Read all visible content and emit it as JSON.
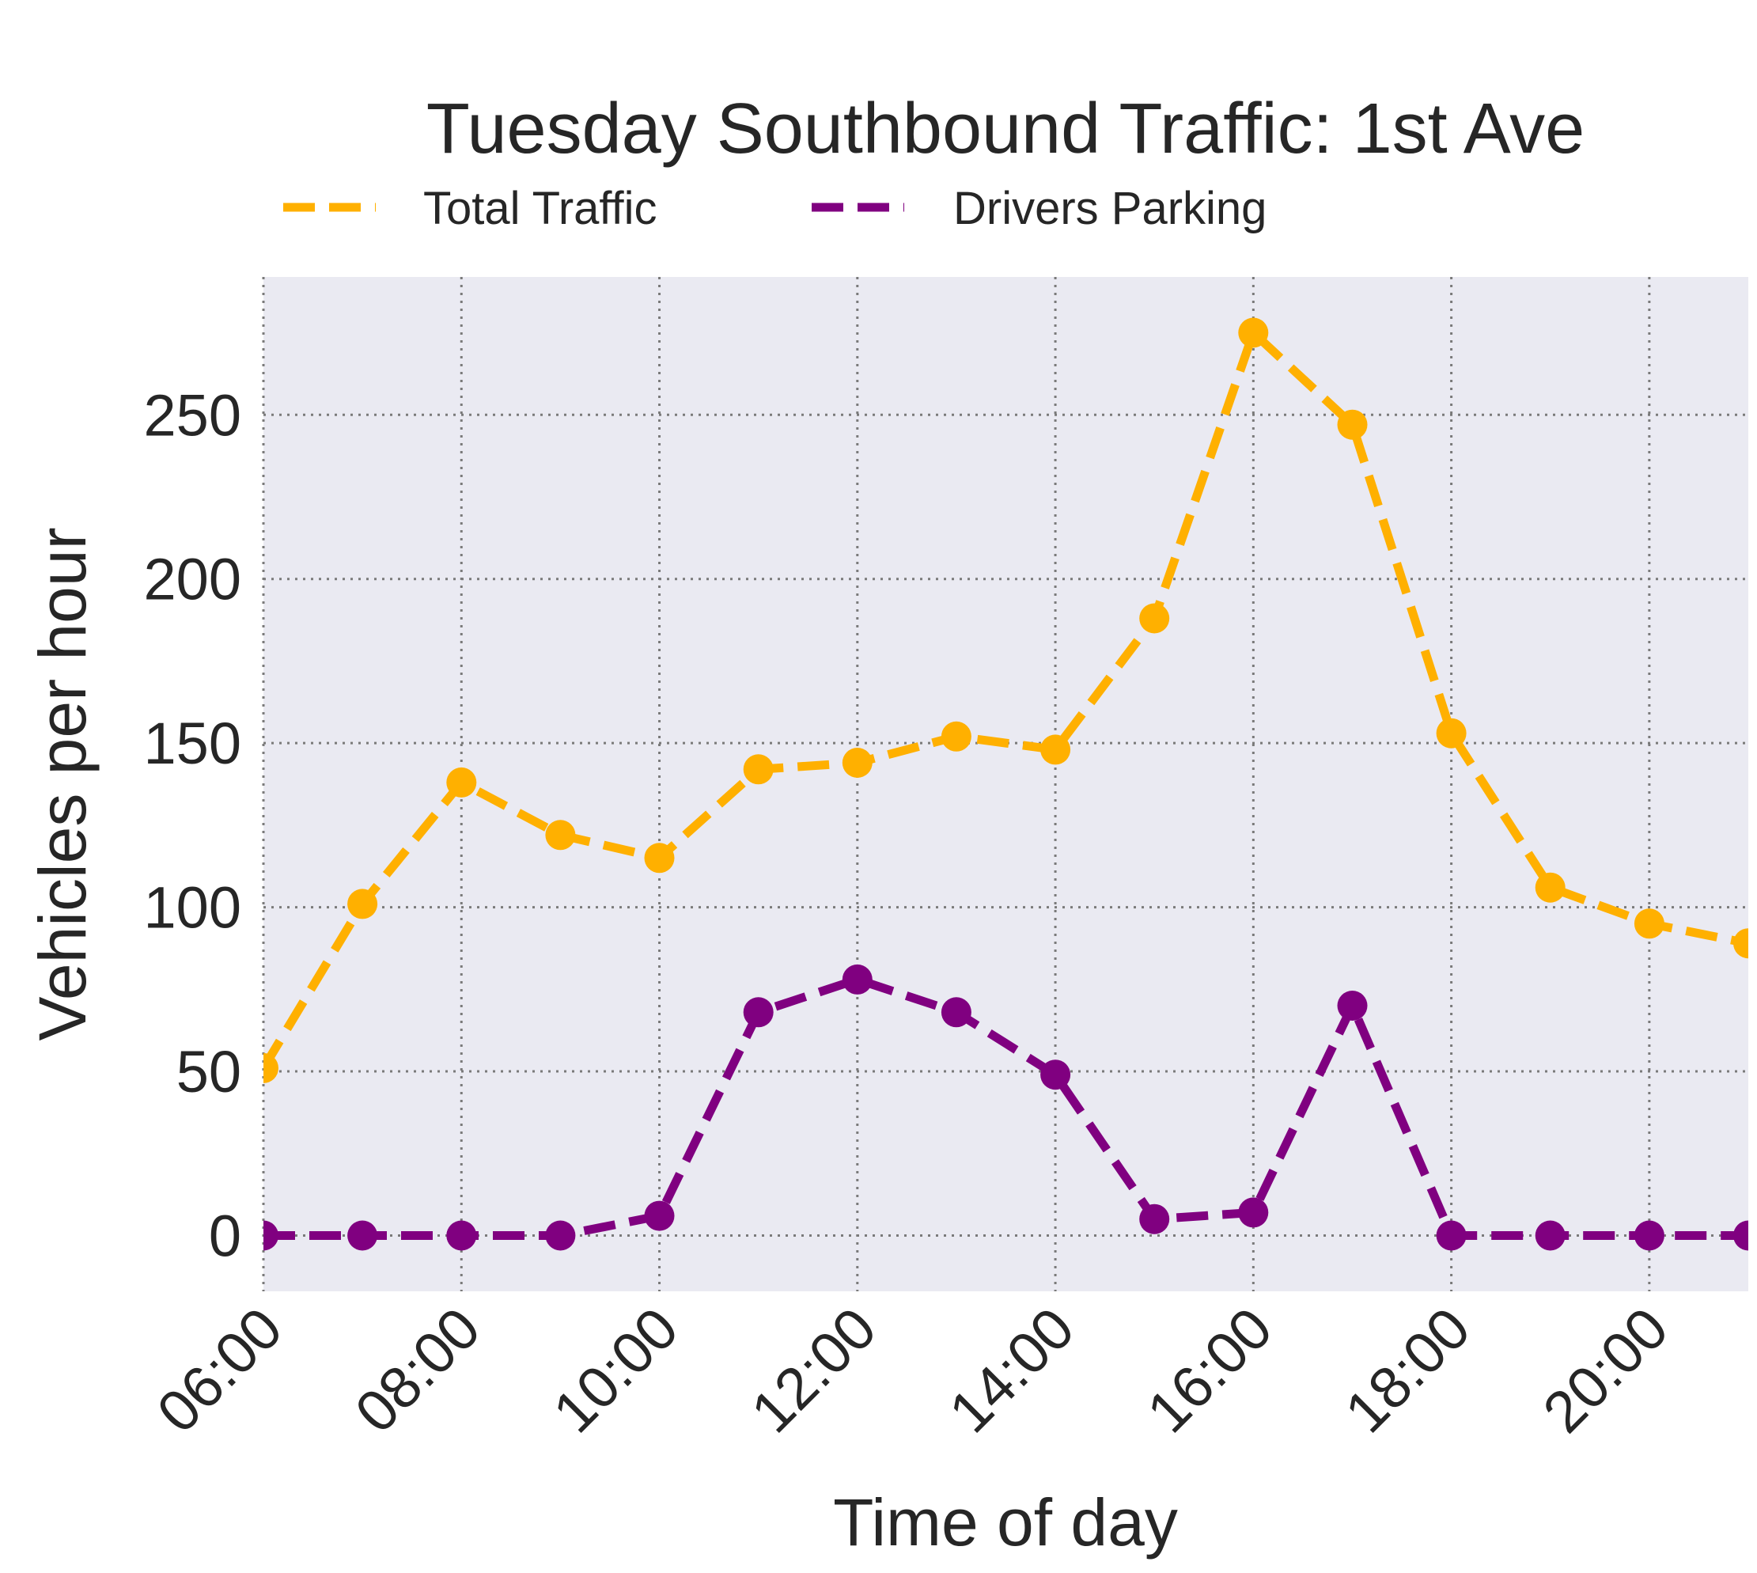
{
  "chart_data": {
    "type": "line",
    "title": "Tuesday Southbound Traffic: 1st Ave",
    "xlabel": "Time of day",
    "ylabel": "Vehicles per hour",
    "x": [
      "06:00",
      "07:00",
      "08:00",
      "09:00",
      "10:00",
      "11:00",
      "12:00",
      "13:00",
      "14:00",
      "15:00",
      "16:00",
      "17:00",
      "18:00",
      "19:00",
      "20:00",
      "21:00"
    ],
    "xlim": [
      6,
      21
    ],
    "ylim": [
      -17,
      292
    ],
    "x_ticks": [
      "06:00",
      "08:00",
      "10:00",
      "12:00",
      "14:00",
      "16:00",
      "18:00",
      "20:00"
    ],
    "y_ticks": [
      0,
      50,
      100,
      150,
      200,
      250
    ],
    "grid": true,
    "legend_position": "top",
    "series": [
      {
        "name": "Total Traffic",
        "color": "#ffb000",
        "values": [
          51,
          101,
          138,
          122,
          115,
          142,
          144,
          152,
          148,
          188,
          275,
          247,
          153,
          106,
          95,
          89
        ]
      },
      {
        "name": "Drivers Parking",
        "color": "#800080",
        "values": [
          0,
          0,
          0,
          0,
          6,
          68,
          78,
          68,
          49,
          5,
          7,
          70,
          0,
          0,
          0,
          0
        ]
      }
    ]
  }
}
